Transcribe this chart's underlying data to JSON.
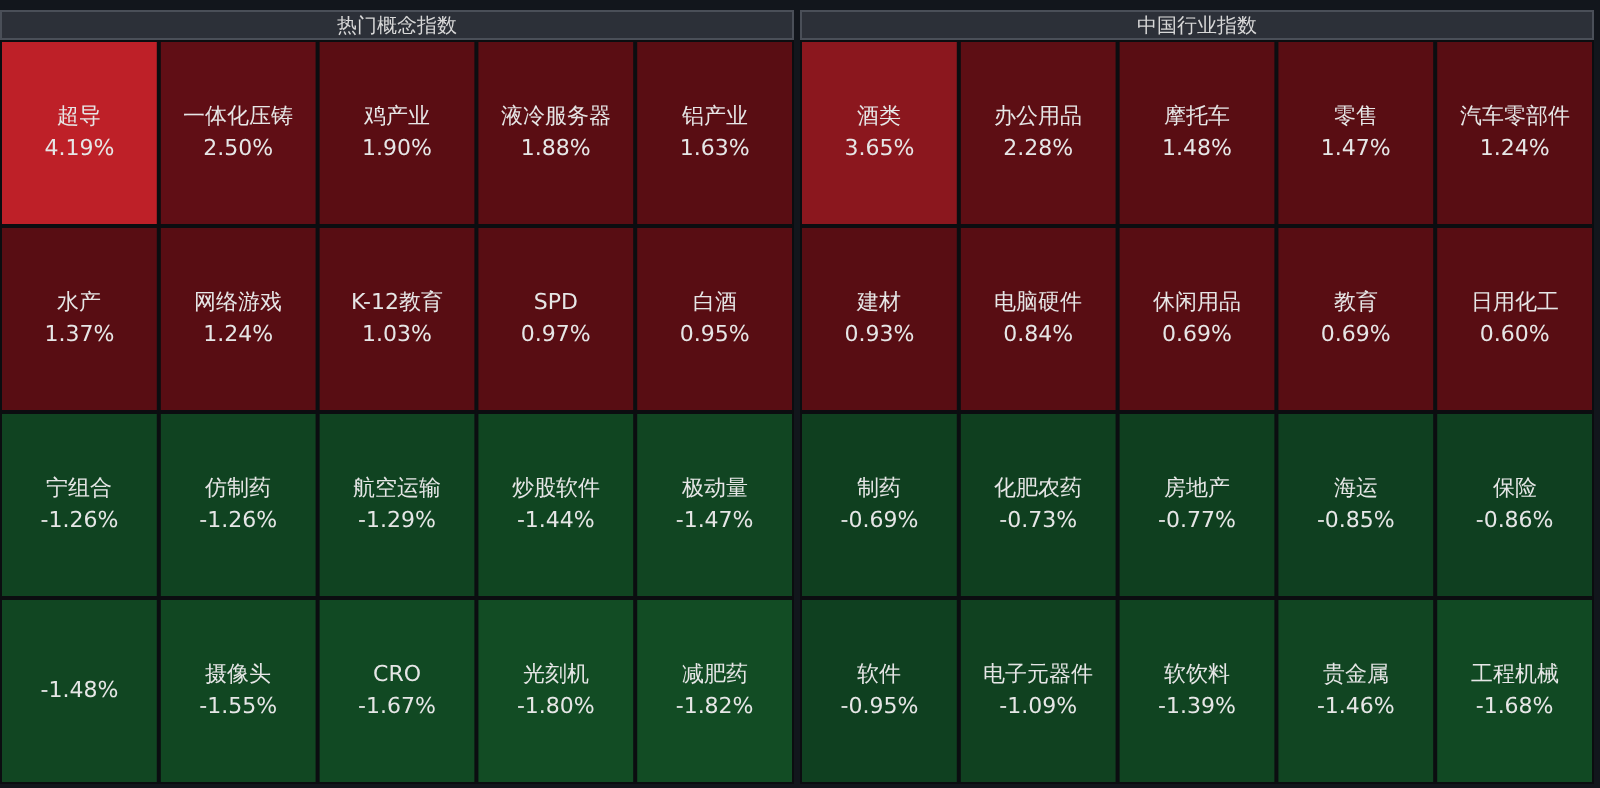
{
  "chart_data": [
    {
      "type": "other",
      "title": "热门概念指数",
      "categories": [
        "超导",
        "一体化压铸",
        "鸡产业",
        "液冷服务器",
        "铝产业",
        "水产",
        "网络游戏",
        "K-12教育",
        "SPD",
        "白酒",
        "宁组合",
        "仿制药",
        "航空运输",
        "炒股软件",
        "极动量",
        null,
        "摄像头",
        "CRO",
        "光刻机",
        "减肥药"
      ],
      "values": [
        4.19,
        2.5,
        1.9,
        1.88,
        1.63,
        1.37,
        1.24,
        1.03,
        0.97,
        0.95,
        -1.26,
        -1.26,
        -1.29,
        -1.44,
        -1.47,
        -1.48,
        -1.55,
        -1.67,
        -1.8,
        -1.82
      ],
      "value_labels": [
        "4.19%",
        "2.50%",
        "1.90%",
        "1.88%",
        "1.63%",
        "1.37%",
        "1.24%",
        "1.03%",
        "0.97%",
        "0.95%",
        "-1.26%",
        "-1.26%",
        "-1.29%",
        "-1.44%",
        "-1.47%",
        "-1.48%",
        "-1.55%",
        "-1.67%",
        "-1.80%",
        "-1.82%"
      ]
    },
    {
      "type": "other",
      "title": "中国行业指数",
      "categories": [
        "酒类",
        "办公用品",
        "摩托车",
        "零售",
        "汽车零部件",
        "建材",
        "电脑硬件",
        "休闲用品",
        "教育",
        "日用化工",
        "制药",
        "化肥农药",
        "房地产",
        "海运",
        "保险",
        "软件",
        "电子元器件",
        "软饮料",
        "贵金属",
        "工程机械"
      ],
      "values": [
        3.65,
        2.28,
        1.48,
        1.47,
        1.24,
        0.93,
        0.84,
        0.69,
        0.69,
        0.6,
        -0.69,
        -0.73,
        -0.77,
        -0.85,
        -0.86,
        -0.95,
        -1.09,
        -1.39,
        -1.46,
        -1.68
      ],
      "value_labels": [
        "3.65%",
        "2.28%",
        "1.48%",
        "1.47%",
        "1.24%",
        "0.93%",
        "0.84%",
        "0.69%",
        "0.69%",
        "0.60%",
        "-0.69%",
        "-0.73%",
        "-0.77%",
        "-0.85%",
        "-0.86%",
        "-0.95%",
        "-1.09%",
        "-1.39%",
        "-1.46%",
        "-1.68%"
      ]
    }
  ]
}
